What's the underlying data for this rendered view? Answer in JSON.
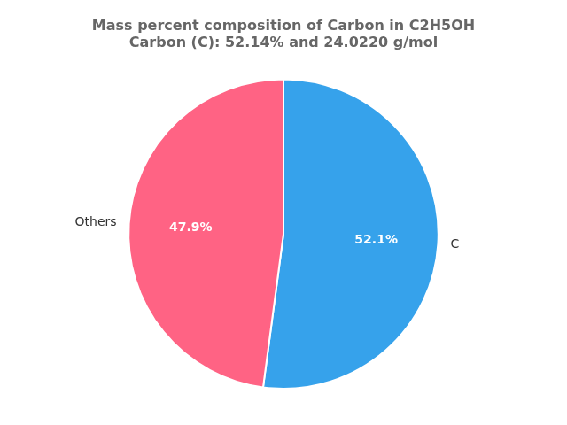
{
  "chart_data": {
    "type": "pie",
    "title": "Mass percent composition of Carbon in C2H5OH",
    "subtitle": "Carbon (C): 52.14% and 24.0220 g/mol",
    "categories": [
      "C",
      "Others"
    ],
    "values": [
      52.1,
      47.9
    ],
    "value_labels": [
      "52.1%",
      "47.9%"
    ],
    "data_labels": true,
    "legend": false
  }
}
